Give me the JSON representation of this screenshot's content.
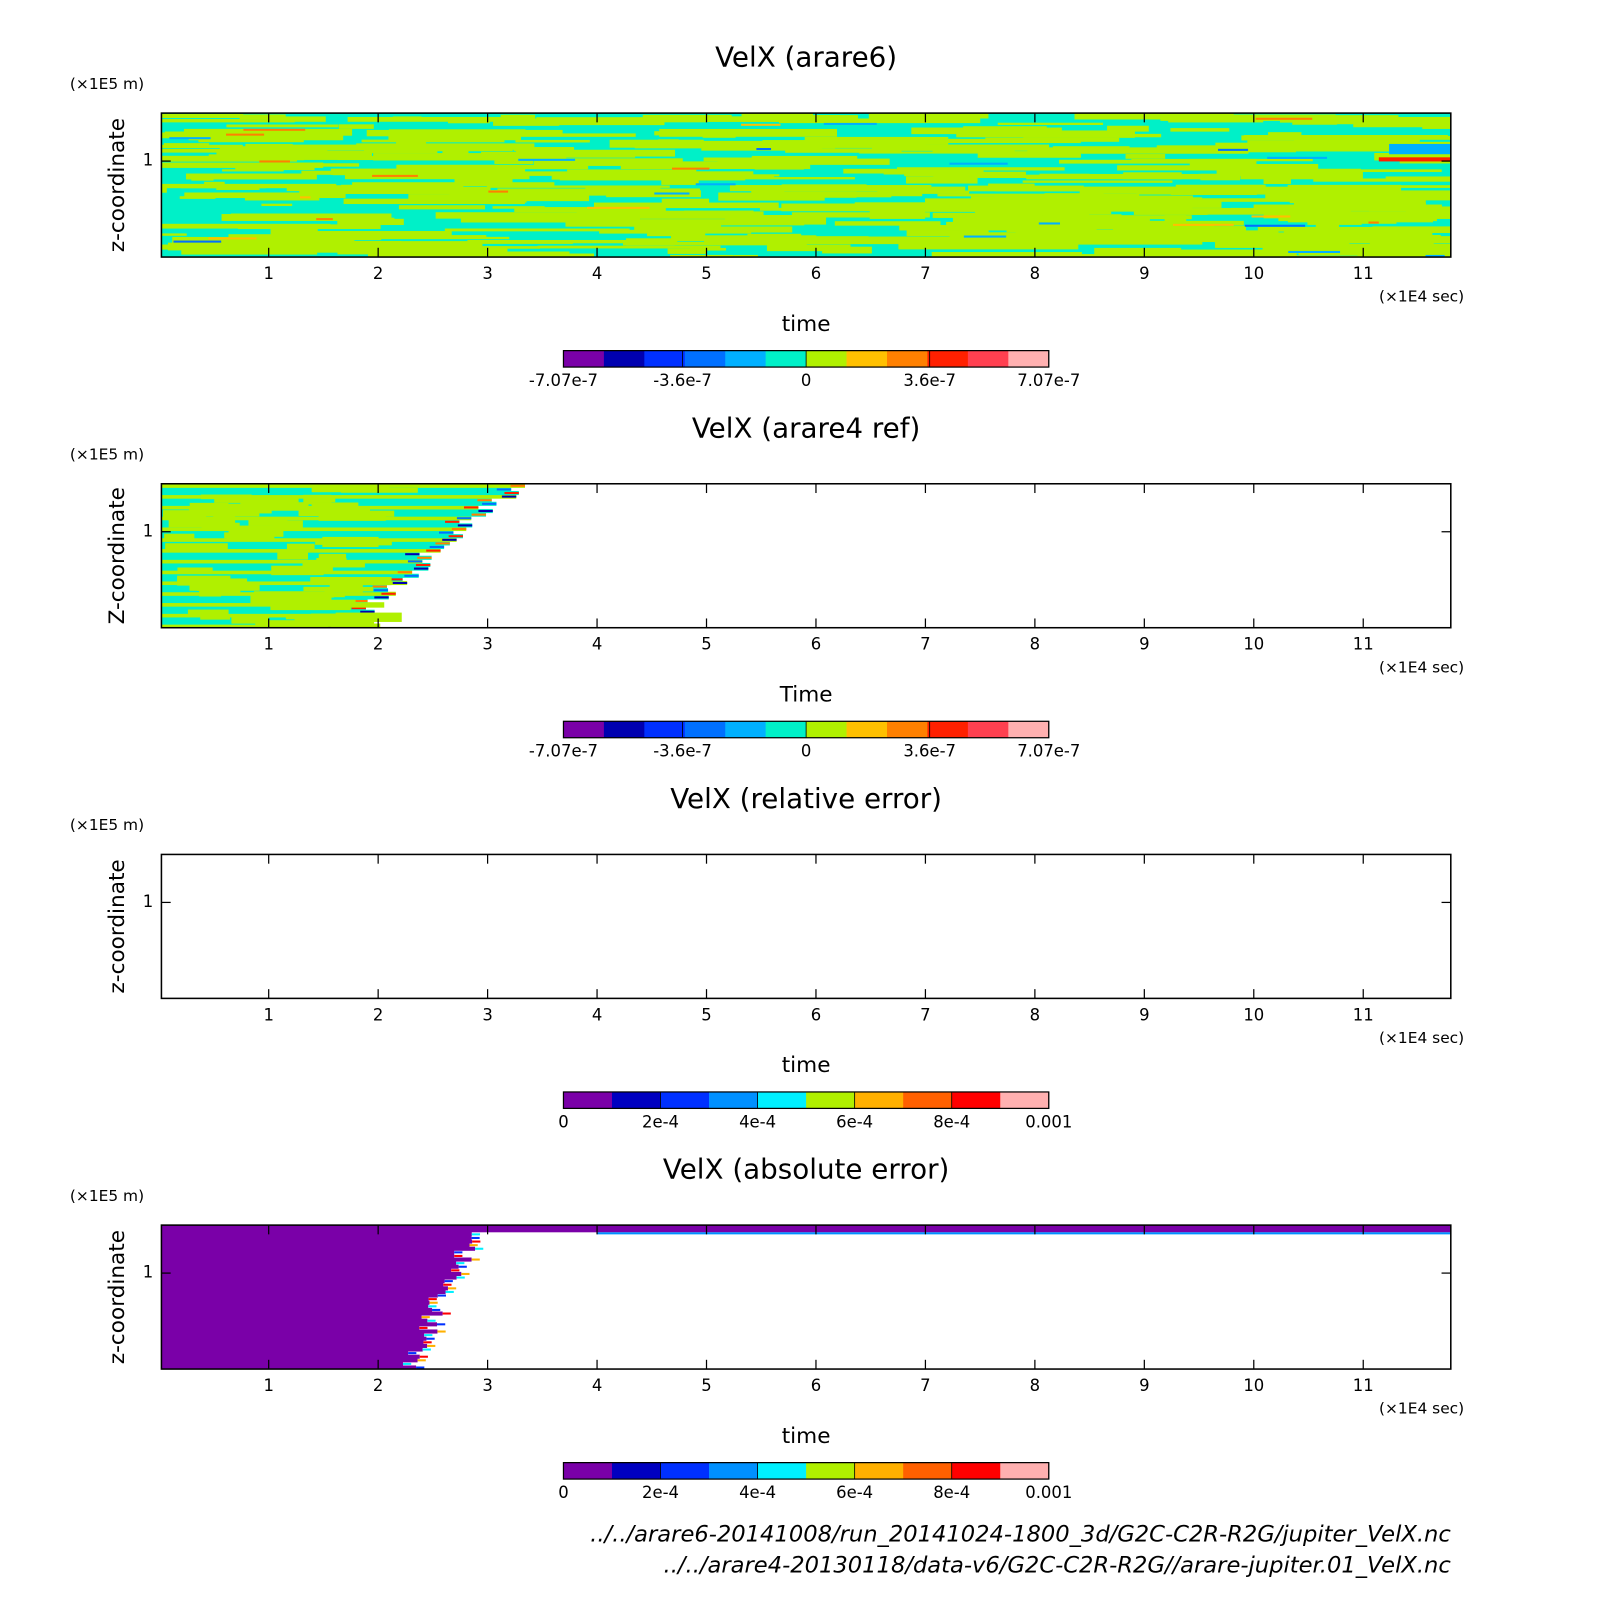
{
  "chart_data": [
    {
      "type": "heatmap",
      "title": "VelX (arare6)",
      "xlabel": "time",
      "ylabel": "z-coordinate",
      "xunit": "(×1E4 sec)",
      "yunit": "(×1E5 m)",
      "xlim": [
        0.02,
        11.8
      ],
      "xticks": [
        1,
        2,
        3,
        4,
        5,
        6,
        7,
        8,
        9,
        10,
        11
      ],
      "ylim": [
        0,
        1.5
      ],
      "yticks": [
        1
      ],
      "colorbar": {
        "clim": [
          -7.07e-07,
          7.07e-07
        ],
        "colors": [
          "#7a00a8",
          "#0000b0",
          "#0030ff",
          "#0070ff",
          "#00b0ff",
          "#00f0c8",
          "#b0f000",
          "#ffc000",
          "#ff8000",
          "#ff2000",
          "#ff4050",
          "#ffb0b0"
        ],
        "ticks": [
          {
            "value": -7.07e-07,
            "label": "-7.07e-7"
          },
          {
            "value": -3.6e-07,
            "label": "-3.6e-7"
          },
          {
            "value": 0,
            "label": "0"
          },
          {
            "value": 3.6e-07,
            "label": "3.6e-7"
          },
          {
            "value": 7.07e-07,
            "label": "7.07e-7"
          }
        ]
      }
    },
    {
      "type": "heatmap",
      "title": "VelX (arare4 ref)",
      "xlabel": "Time",
      "ylabel": "Z-coordinate",
      "xunit": "(×1E4 sec)",
      "yunit": "(×1E5 m)",
      "xlim": [
        0.02,
        11.8
      ],
      "xticks": [
        1,
        2,
        3,
        4,
        5,
        6,
        7,
        8,
        9,
        10,
        11
      ],
      "ylim": [
        0,
        1.5
      ],
      "yticks": [
        1
      ],
      "colorbar": {
        "clim": [
          -7.07e-07,
          7.07e-07
        ],
        "colors": [
          "#7a00a8",
          "#0000b0",
          "#0030ff",
          "#0070ff",
          "#00b0ff",
          "#00f0c8",
          "#b0f000",
          "#ffc000",
          "#ff8000",
          "#ff2000",
          "#ff4050",
          "#ffb0b0"
        ],
        "ticks": [
          {
            "value": -7.07e-07,
            "label": "-7.07e-7"
          },
          {
            "value": -3.6e-07,
            "label": "-3.6e-7"
          },
          {
            "value": 0,
            "label": "0"
          },
          {
            "value": 3.6e-07,
            "label": "3.6e-7"
          },
          {
            "value": 7.07e-07,
            "label": "7.07e-7"
          }
        ]
      }
    },
    {
      "type": "heatmap",
      "title": "VelX (relative error)",
      "xlabel": "time",
      "ylabel": "z-coordinate",
      "xunit": "(×1E4 sec)",
      "yunit": "(×1E5 m)",
      "xlim": [
        0.02,
        11.8
      ],
      "xticks": [
        1,
        2,
        3,
        4,
        5,
        6,
        7,
        8,
        9,
        10,
        11
      ],
      "ylim": [
        0,
        1.5
      ],
      "yticks": [
        1
      ],
      "colorbar": {
        "clim": [
          0,
          0.001
        ],
        "colors": [
          "#7a00a8",
          "#0000c0",
          "#0030ff",
          "#0090ff",
          "#00f0ff",
          "#b0f000",
          "#ffb000",
          "#ff6000",
          "#ff0000",
          "#ffb0b0"
        ],
        "ticks": [
          {
            "value": 0,
            "label": "0"
          },
          {
            "value": 0.0002,
            "label": "2e-4"
          },
          {
            "value": 0.0004,
            "label": "4e-4"
          },
          {
            "value": 0.0006,
            "label": "6e-4"
          },
          {
            "value": 0.0008,
            "label": "8e-4"
          },
          {
            "value": 0.001,
            "label": "0.001"
          }
        ]
      }
    },
    {
      "type": "heatmap",
      "title": "VelX (absolute error)",
      "xlabel": "time",
      "ylabel": "z-coordinate",
      "xunit": "(×1E4 sec)",
      "yunit": "(×1E5 m)",
      "xlim": [
        0.02,
        11.8
      ],
      "xticks": [
        1,
        2,
        3,
        4,
        5,
        6,
        7,
        8,
        9,
        10,
        11
      ],
      "ylim": [
        0,
        1.5
      ],
      "yticks": [
        1
      ],
      "colorbar": {
        "clim": [
          0,
          0.001
        ],
        "colors": [
          "#7a00a8",
          "#0000c0",
          "#0030ff",
          "#0090ff",
          "#00f0ff",
          "#b0f000",
          "#ffb000",
          "#ff6000",
          "#ff0000",
          "#ffb0b0"
        ],
        "ticks": [
          {
            "value": 0,
            "label": "0"
          },
          {
            "value": 0.0002,
            "label": "2e-4"
          },
          {
            "value": 0.0004,
            "label": "4e-4"
          },
          {
            "value": 0.0006,
            "label": "6e-4"
          },
          {
            "value": 0.0008,
            "label": "8e-4"
          },
          {
            "value": 0.001,
            "label": "0.001"
          }
        ]
      }
    }
  ],
  "footer": [
    "../../arare6-20141008/run_20141024-1800_3d/G2C-C2R-R2G/jupiter_VelX.nc",
    "../../arare4-20130118/data-v6/G2C-C2R-R2G//arare-jupiter.01_VelX.nc"
  ]
}
